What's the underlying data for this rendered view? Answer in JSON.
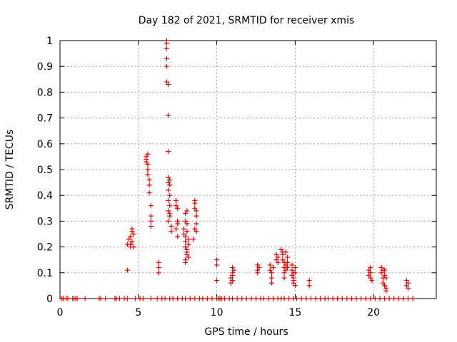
{
  "chart_data": {
    "type": "scatter",
    "title": "Day 182 of 2021, SRMTID for receiver xmis",
    "xlabel": "GPS time / hours",
    "ylabel": "SRMTID / TECUs",
    "xlim": [
      0,
      24
    ],
    "ylim": [
      0,
      1
    ],
    "xticks": [
      "0",
      "5",
      "10",
      "15",
      "20"
    ],
    "xtick_values": [
      0,
      5,
      10,
      15,
      20
    ],
    "yticks": [
      "0",
      "0.1",
      "0.2",
      "0.3",
      "0.4",
      "0.5",
      "0.6",
      "0.7",
      "0.8",
      "0.9",
      "1"
    ],
    "ytick_values": [
      0,
      0.1,
      0.2,
      0.3,
      0.4,
      0.5,
      0.6,
      0.7,
      0.8,
      0.9,
      1
    ],
    "grid": true,
    "marker": "+",
    "color": "#e00000",
    "series": [
      {
        "name": "SRMTID",
        "points": [
          [
            0.1,
            0
          ],
          [
            0.2,
            0
          ],
          [
            0.4,
            0
          ],
          [
            0.5,
            0
          ],
          [
            0.8,
            0
          ],
          [
            0.9,
            0
          ],
          [
            1.0,
            0
          ],
          [
            1.1,
            0
          ],
          [
            1.6,
            0
          ],
          [
            2.5,
            0
          ],
          [
            2.6,
            0
          ],
          [
            2.9,
            0
          ],
          [
            3.5,
            0
          ],
          [
            3.6,
            0
          ],
          [
            3.8,
            0
          ],
          [
            4.1,
            0
          ],
          [
            4.3,
            0
          ],
          [
            4.8,
            0
          ],
          [
            5.1,
            0
          ],
          [
            5.3,
            0
          ],
          [
            5.8,
            0
          ],
          [
            6.2,
            0
          ],
          [
            6.5,
            0
          ],
          [
            6.7,
            0
          ],
          [
            7.0,
            0
          ],
          [
            7.2,
            0
          ],
          [
            7.5,
            0
          ],
          [
            7.8,
            0
          ],
          [
            8.0,
            0
          ],
          [
            8.3,
            0
          ],
          [
            8.6,
            0
          ],
          [
            8.9,
            0
          ],
          [
            9.1,
            0
          ],
          [
            9.4,
            0
          ],
          [
            9.7,
            0
          ],
          [
            10.0,
            0
          ],
          [
            10.1,
            0
          ],
          [
            10.2,
            0
          ],
          [
            10.3,
            0
          ],
          [
            10.5,
            0
          ],
          [
            10.8,
            0
          ],
          [
            11.0,
            0
          ],
          [
            11.3,
            0
          ],
          [
            11.6,
            0
          ],
          [
            11.9,
            0
          ],
          [
            12.2,
            0
          ],
          [
            12.5,
            0
          ],
          [
            12.8,
            0
          ],
          [
            13.0,
            0
          ],
          [
            13.3,
            0
          ],
          [
            13.6,
            0
          ],
          [
            13.9,
            0
          ],
          [
            14.1,
            0
          ],
          [
            14.3,
            0
          ],
          [
            14.6,
            0
          ],
          [
            14.9,
            0
          ],
          [
            15.1,
            0
          ],
          [
            15.4,
            0
          ],
          [
            15.7,
            0
          ],
          [
            16.0,
            0
          ],
          [
            16.3,
            0
          ],
          [
            16.6,
            0
          ],
          [
            16.9,
            0
          ],
          [
            17.1,
            0
          ],
          [
            17.4,
            0
          ],
          [
            17.7,
            0
          ],
          [
            18.0,
            0
          ],
          [
            18.3,
            0
          ],
          [
            18.6,
            0
          ],
          [
            18.9,
            0
          ],
          [
            19.2,
            0
          ],
          [
            19.5,
            0
          ],
          [
            19.8,
            0
          ],
          [
            20.1,
            0
          ],
          [
            20.4,
            0
          ],
          [
            20.7,
            0
          ],
          [
            21.0,
            0
          ],
          [
            21.3,
            0
          ],
          [
            21.6,
            0
          ],
          [
            21.9,
            0
          ],
          [
            22.2,
            0
          ],
          [
            22.5,
            0
          ],
          [
            4.3,
            0.11
          ],
          [
            4.3,
            0.21
          ],
          [
            4.4,
            0.23
          ],
          [
            4.5,
            0.2
          ],
          [
            4.5,
            0.24
          ],
          [
            4.6,
            0.22
          ],
          [
            4.6,
            0.26
          ],
          [
            4.7,
            0.25
          ],
          [
            4.7,
            0.2
          ],
          [
            4.6,
            0.27
          ],
          [
            4.5,
            0.21
          ],
          [
            5.5,
            0.55
          ],
          [
            5.5,
            0.53
          ],
          [
            5.6,
            0.56
          ],
          [
            5.6,
            0.5
          ],
          [
            5.6,
            0.48
          ],
          [
            5.7,
            0.46
          ],
          [
            5.7,
            0.44
          ],
          [
            5.7,
            0.41
          ],
          [
            5.8,
            0.36
          ],
          [
            5.8,
            0.32
          ],
          [
            5.8,
            0.3
          ],
          [
            5.8,
            0.28
          ],
          [
            5.6,
            0.52
          ],
          [
            5.5,
            0.54
          ],
          [
            6.3,
            0.14
          ],
          [
            6.3,
            0.12
          ],
          [
            6.3,
            0.1
          ],
          [
            6.8,
            1.0
          ],
          [
            6.8,
            0.99
          ],
          [
            6.8,
            0.97
          ],
          [
            6.8,
            0.93
          ],
          [
            6.8,
            0.9
          ],
          [
            6.8,
            0.84
          ],
          [
            6.9,
            0.83
          ],
          [
            6.9,
            0.71
          ],
          [
            6.9,
            0.57
          ],
          [
            6.9,
            0.47
          ],
          [
            7.0,
            0.46
          ],
          [
            7.0,
            0.44
          ],
          [
            6.9,
            0.42
          ],
          [
            7.0,
            0.4
          ],
          [
            6.9,
            0.38
          ],
          [
            7.0,
            0.36
          ],
          [
            6.9,
            0.34
          ],
          [
            7.0,
            0.32
          ],
          [
            6.9,
            0.3
          ],
          [
            7.1,
            0.28
          ],
          [
            7.1,
            0.26
          ],
          [
            7.0,
            0.33
          ],
          [
            6.9,
            0.45
          ],
          [
            7.4,
            0.38
          ],
          [
            7.4,
            0.36
          ],
          [
            7.5,
            0.35
          ],
          [
            7.5,
            0.3
          ],
          [
            7.4,
            0.27
          ],
          [
            7.5,
            0.24
          ],
          [
            7.5,
            0.29
          ],
          [
            7.9,
            0.27
          ],
          [
            7.9,
            0.25
          ],
          [
            8.0,
            0.33
          ],
          [
            8.0,
            0.3
          ],
          [
            8.0,
            0.24
          ],
          [
            8.0,
            0.22
          ],
          [
            8.0,
            0.2
          ],
          [
            8.1,
            0.19
          ],
          [
            8.1,
            0.18
          ],
          [
            8.0,
            0.15
          ],
          [
            8.0,
            0.14
          ],
          [
            8.1,
            0.17
          ],
          [
            8.2,
            0.21
          ],
          [
            8.2,
            0.23
          ],
          [
            8.1,
            0.34
          ],
          [
            8.1,
            0.29
          ],
          [
            8.2,
            0.16
          ],
          [
            8.1,
            0.26
          ],
          [
            8.5,
            0.23
          ],
          [
            8.6,
            0.38
          ],
          [
            8.6,
            0.37
          ],
          [
            8.6,
            0.35
          ],
          [
            8.7,
            0.34
          ],
          [
            8.7,
            0.32
          ],
          [
            8.7,
            0.29
          ],
          [
            8.6,
            0.27
          ],
          [
            8.7,
            0.26
          ],
          [
            10.0,
            0.15
          ],
          [
            10.0,
            0.13
          ],
          [
            10.0,
            0.07
          ],
          [
            10.9,
            0.06
          ],
          [
            10.9,
            0.08
          ],
          [
            11.0,
            0.1
          ],
          [
            11.0,
            0.12
          ],
          [
            11.0,
            0.09
          ],
          [
            11.1,
            0.11
          ],
          [
            11.0,
            0.07
          ],
          [
            12.6,
            0.11
          ],
          [
            12.6,
            0.13
          ],
          [
            12.7,
            0.12
          ],
          [
            12.6,
            0.1
          ],
          [
            13.4,
            0.13
          ],
          [
            13.4,
            0.11
          ],
          [
            13.5,
            0.1
          ],
          [
            13.5,
            0.08
          ],
          [
            13.5,
            0.06
          ],
          [
            13.6,
            0.12
          ],
          [
            13.8,
            0.17
          ],
          [
            13.8,
            0.15
          ],
          [
            13.9,
            0.14
          ],
          [
            13.9,
            0.16
          ],
          [
            14.1,
            0.19
          ],
          [
            14.2,
            0.17
          ],
          [
            14.2,
            0.15
          ],
          [
            14.3,
            0.14
          ],
          [
            14.3,
            0.12
          ],
          [
            14.3,
            0.1
          ],
          [
            14.4,
            0.13
          ],
          [
            14.4,
            0.11
          ],
          [
            14.4,
            0.18
          ],
          [
            14.5,
            0.16
          ],
          [
            14.5,
            0.14
          ],
          [
            14.5,
            0.12
          ],
          [
            14.3,
            0.08
          ],
          [
            14.2,
            0.18
          ],
          [
            14.8,
            0.13
          ],
          [
            14.8,
            0.11
          ],
          [
            14.8,
            0.09
          ],
          [
            14.9,
            0.08
          ],
          [
            14.9,
            0.07
          ],
          [
            14.9,
            0.06
          ],
          [
            15.0,
            0.05
          ],
          [
            15.0,
            0.1
          ],
          [
            15.0,
            0.12
          ],
          [
            14.9,
            0.1
          ],
          [
            15.9,
            0.07
          ],
          [
            15.9,
            0.05
          ],
          [
            19.7,
            0.11
          ],
          [
            19.7,
            0.09
          ],
          [
            19.8,
            0.12
          ],
          [
            19.8,
            0.08
          ],
          [
            19.9,
            0.07
          ],
          [
            19.8,
            0.1
          ],
          [
            20.5,
            0.12
          ],
          [
            20.5,
            0.1
          ],
          [
            20.6,
            0.08
          ],
          [
            20.6,
            0.11
          ],
          [
            20.6,
            0.06
          ],
          [
            20.7,
            0.09
          ],
          [
            20.7,
            0.05
          ],
          [
            20.8,
            0.04
          ],
          [
            20.8,
            0.03
          ],
          [
            20.8,
            0.08
          ],
          [
            20.7,
            0.11
          ],
          [
            22.1,
            0.07
          ],
          [
            22.1,
            0.05
          ],
          [
            22.2,
            0.06
          ],
          [
            22.2,
            0.04
          ]
        ]
      }
    ]
  }
}
